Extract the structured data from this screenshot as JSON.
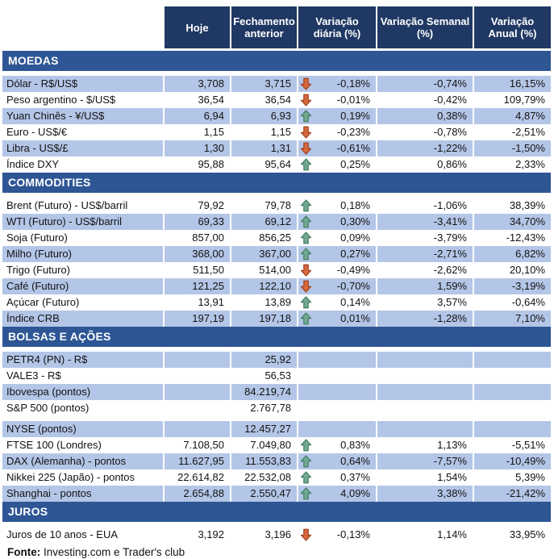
{
  "header": {
    "columns": [
      "Hoje",
      "Fechamento anterior",
      "Variação diária (%)",
      "Variação Semanal (%)",
      "Variação Anual (%)"
    ]
  },
  "colors": {
    "header_bg": "#1F3864",
    "section_band_bg": "#2E5695",
    "row_shade": "#B4C6E7",
    "arrow_up_fill": "#74A892",
    "arrow_up_stroke": "#3E7D62",
    "arrow_down_fill": "#D8693B",
    "arrow_down_stroke": "#9E3E1F"
  },
  "sections": [
    {
      "title": "MOEDAS",
      "rows": [
        {
          "label": "Dólar - R$/US$",
          "hoje": "3,708",
          "fechamento": "3,715",
          "arrow": "down",
          "daily": "-0,18%",
          "weekly": "-0,74%",
          "annual": "16,15%",
          "shaded": true
        },
        {
          "label": "Peso argentino - $/US$",
          "hoje": "36,54",
          "fechamento": "36,54",
          "arrow": "down",
          "daily": "-0,01%",
          "weekly": "-0,42%",
          "annual": "109,79%",
          "shaded": false
        },
        {
          "label": "Yuan Chinês - ¥/US$",
          "hoje": "6,94",
          "fechamento": "6,93",
          "arrow": "up",
          "daily": "0,19%",
          "weekly": "0,38%",
          "annual": "4,87%",
          "shaded": true
        },
        {
          "label": "Euro - US$/€",
          "hoje": "1,15",
          "fechamento": "1,15",
          "arrow": "down",
          "daily": "-0,23%",
          "weekly": "-0,78%",
          "annual": "-2,51%",
          "shaded": false
        },
        {
          "label": "Libra - US$/£",
          "hoje": "1,30",
          "fechamento": "1,31",
          "arrow": "down",
          "daily": "-0,61%",
          "weekly": "-1,22%",
          "annual": "-1,50%",
          "shaded": true
        },
        {
          "label": "Índice DXY",
          "hoje": "95,88",
          "fechamento": "95,64",
          "arrow": "up",
          "daily": "0,25%",
          "weekly": "0,86%",
          "annual": "2,33%",
          "shaded": false
        }
      ]
    },
    {
      "title": "COMMODITIES",
      "rows": [
        {
          "label": "Brent (Futuro) - US$/barril",
          "hoje": "79,92",
          "fechamento": "79,78",
          "arrow": "up",
          "daily": "0,18%",
          "weekly": "-1,06%",
          "annual": "38,39%",
          "shaded": false
        },
        {
          "label": "WTI (Futuro) - US$/barril",
          "hoje": "69,33",
          "fechamento": "69,12",
          "arrow": "up",
          "daily": "0,30%",
          "weekly": "-3,41%",
          "annual": "34,70%",
          "shaded": true
        },
        {
          "label": "Soja (Futuro)",
          "hoje": "857,00",
          "fechamento": "856,25",
          "arrow": "up",
          "daily": "0,09%",
          "weekly": "-3,79%",
          "annual": "-12,43%",
          "shaded": false
        },
        {
          "label": "Milho (Futuro)",
          "hoje": "368,00",
          "fechamento": "367,00",
          "arrow": "up",
          "daily": "0,27%",
          "weekly": "-2,71%",
          "annual": "6,82%",
          "shaded": true
        },
        {
          "label": "Trigo (Futuro)",
          "hoje": "511,50",
          "fechamento": "514,00",
          "arrow": "down",
          "daily": "-0,49%",
          "weekly": "-2,62%",
          "annual": "20,10%",
          "shaded": false
        },
        {
          "label": "Café (Futuro)",
          "hoje": "121,25",
          "fechamento": "122,10",
          "arrow": "down",
          "daily": "-0,70%",
          "weekly": "1,59%",
          "annual": "-3,19%",
          "shaded": true
        },
        {
          "label": "Açúcar (Futuro)",
          "hoje": "13,91",
          "fechamento": "13,89",
          "arrow": "up",
          "daily": "0,14%",
          "weekly": "3,57%",
          "annual": "-0,64%",
          "shaded": false
        },
        {
          "label": "Índice CRB",
          "hoje": "197,19",
          "fechamento": "197,18",
          "arrow": "up",
          "daily": "0,01%",
          "weekly": "-1,28%",
          "annual": "7,10%",
          "shaded": true
        }
      ]
    },
    {
      "title": "BOLSAS E AÇÕES",
      "rows": [
        {
          "label": "PETR4 (PN) - R$",
          "hoje": "",
          "fechamento": "25,92",
          "arrow": null,
          "daily": "",
          "weekly": "",
          "annual": "",
          "shaded": true
        },
        {
          "label": "VALE3 - R$",
          "hoje": "",
          "fechamento": "56,53",
          "arrow": null,
          "daily": "",
          "weekly": "",
          "annual": "",
          "shaded": false
        },
        {
          "label": "Ibovespa (pontos)",
          "hoje": "",
          "fechamento": "84.219,74",
          "arrow": null,
          "daily": "",
          "weekly": "",
          "annual": "",
          "shaded": true
        },
        {
          "label": "S&P 500 (pontos)",
          "hoje": "",
          "fechamento": "2.767,78",
          "arrow": null,
          "daily": "",
          "weekly": "",
          "annual": "",
          "shaded": false
        },
        {
          "label": "NYSE (pontos)",
          "hoje": "",
          "fechamento": "12.457,27",
          "arrow": null,
          "daily": "",
          "weekly": "",
          "annual": "",
          "shaded": true,
          "gap_before": true
        },
        {
          "label": "FTSE 100 (Londres)",
          "hoje": "7.108,50",
          "fechamento": "7.049,80",
          "arrow": "up",
          "daily": "0,83%",
          "weekly": "1,13%",
          "annual": "-5,51%",
          "shaded": false
        },
        {
          "label": "DAX (Alemanha) - pontos",
          "hoje": "11.627,95",
          "fechamento": "11.553,83",
          "arrow": "up",
          "daily": "0,64%",
          "weekly": "-7,57%",
          "annual": "-10,49%",
          "shaded": true
        },
        {
          "label": "Nikkei 225 (Japão) - pontos",
          "hoje": "22.614,82",
          "fechamento": "22.532,08",
          "arrow": "up",
          "daily": "0,37%",
          "weekly": "1,54%",
          "annual": "5,39%",
          "shaded": false
        },
        {
          "label": "Shanghai - pontos",
          "hoje": "2.654,88",
          "fechamento": "2.550,47",
          "arrow": "up",
          "daily": "4,09%",
          "weekly": "3,38%",
          "annual": "-21,42%",
          "shaded": true
        }
      ]
    },
    {
      "title": "JUROS",
      "rows": [
        {
          "label": "Juros de 10 anos - EUA",
          "hoje": "3,192",
          "fechamento": "3,196",
          "arrow": "down",
          "daily": "-0,13%",
          "weekly": "1,14%",
          "annual": "33,95%",
          "shaded": false
        }
      ]
    }
  ],
  "footer": {
    "label": "Fonte:",
    "text": "Investing.com e Trader's club"
  }
}
